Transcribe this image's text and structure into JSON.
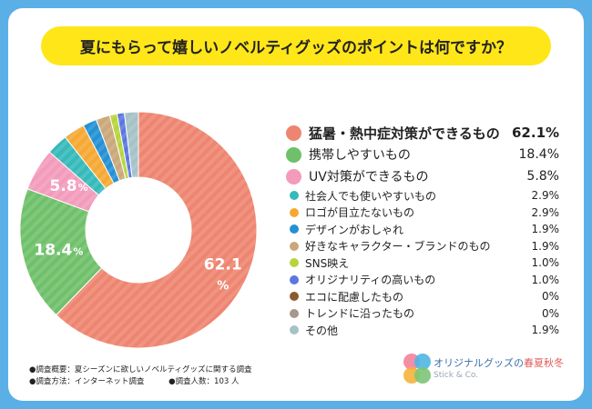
{
  "title": "夏にもらって嬉しいノベルティグッズのポイントは何ですか？",
  "colors": {
    "frame": "#5ab0e6",
    "title_bg": "#ffe619"
  },
  "chart_data": {
    "type": "pie",
    "style": "donut",
    "title": "夏にもらって嬉しいノベルティグッズのポイントは何ですか？",
    "unit": "%",
    "slices": [
      {
        "label": "猛暑・熱中症対策ができるもの",
        "value": 62.1,
        "value_label": "62.1%",
        "color": "#ee8571",
        "tier": "big",
        "inner_label": "62.1"
      },
      {
        "label": "携帯しやすいもの",
        "value": 18.4,
        "value_label": "18.4%",
        "color": "#6fc06a",
        "tier": "big",
        "inner_label": "18.4"
      },
      {
        "label": "UV対策ができるもの",
        "value": 5.8,
        "value_label": "5.8%",
        "color": "#f39bbb",
        "tier": "big",
        "inner_label": "5.8"
      },
      {
        "label": "社会人でも使いやすいもの",
        "value": 2.9,
        "value_label": "2.9%",
        "color": "#36b9b9",
        "tier": "small"
      },
      {
        "label": "ロゴが目立たないもの",
        "value": 2.9,
        "value_label": "2.9%",
        "color": "#f6a832",
        "tier": "small"
      },
      {
        "label": "デザインがおしゃれ",
        "value": 1.9,
        "value_label": "1.9%",
        "color": "#2391d3",
        "tier": "small"
      },
      {
        "label": "好きなキャラクター・ブランドのもの",
        "value": 1.9,
        "value_label": "1.9%",
        "color": "#c9a87a",
        "tier": "small"
      },
      {
        "label": "SNS映え",
        "value": 1.0,
        "value_label": "1.0%",
        "color": "#b7d43c",
        "tier": "small"
      },
      {
        "label": "オリジナリティの高いもの",
        "value": 1.0,
        "value_label": "1.0%",
        "color": "#5b76e0",
        "tier": "small"
      },
      {
        "label": "エコに配慮したもの",
        "value": 0,
        "value_label": "0%",
        "color": "#8c5a2e",
        "tier": "small"
      },
      {
        "label": "トレンドに沿ったもの",
        "value": 0,
        "value_label": "0%",
        "color": "#a8968a",
        "tier": "small"
      },
      {
        "label": "その他",
        "value": 1.9,
        "value_label": "1.9%",
        "color": "#a5c2c7",
        "tier": "small"
      }
    ]
  },
  "notes": {
    "line1": "●調査概要：夏シーズンに欲しいノベルティグッズに関する調査",
    "line2a": "●調査方法：インターネット調査",
    "line2b": "●調査人数：103 人"
  },
  "brand": {
    "name_prefix": "オリジナルグッズの",
    "name_accent": "春夏秋冬",
    "sub": "Stick & Co.",
    "logo_text": "春夏秋冬",
    "logo_colors": [
      "#f28fa6",
      "#4fb6e3",
      "#f6b23c",
      "#7cc576"
    ]
  }
}
